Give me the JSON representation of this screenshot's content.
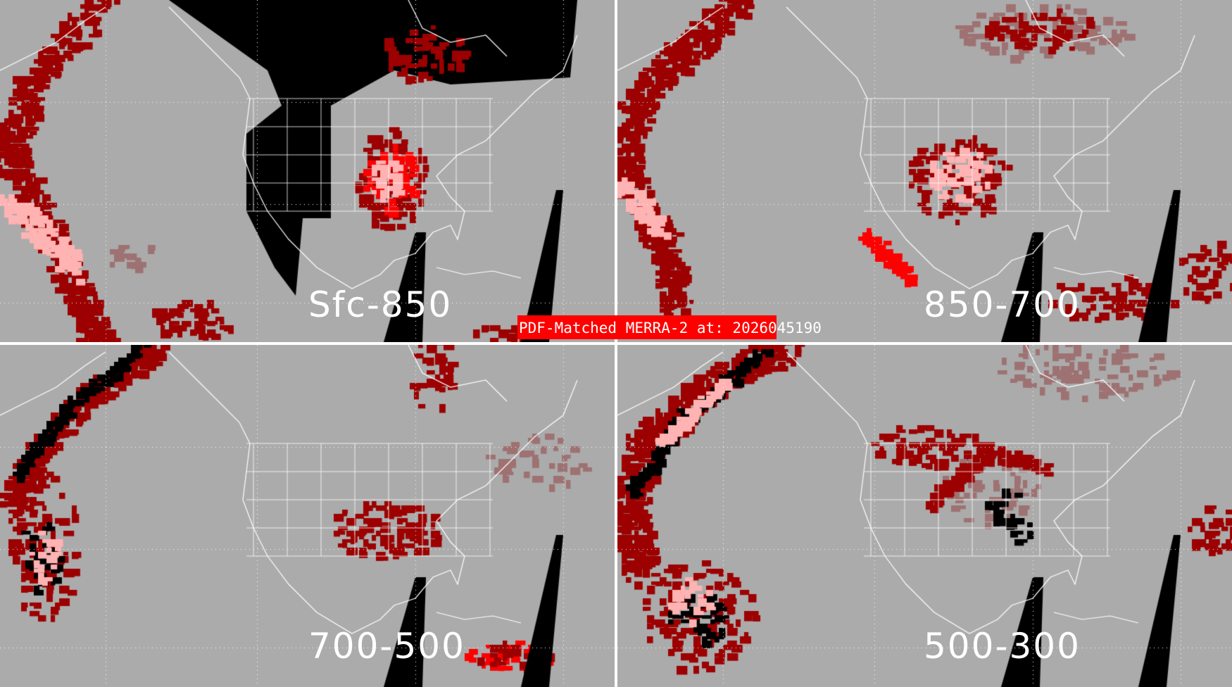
{
  "title": "PDF-Matched MERRA-2 at: 2026045190",
  "panels": [
    {
      "id": "p0",
      "label": "Sfc-850"
    },
    {
      "id": "p1",
      "label": "850-700"
    },
    {
      "id": "p2",
      "label": "700-500"
    },
    {
      "id": "p3",
      "label": "500-300"
    }
  ],
  "colors": {
    "background": "#ababab",
    "dark_red": "#9c0000",
    "red": "#ff0000",
    "pink": "#ffb3b3",
    "muted_red": "#9e7272",
    "black": "#000000",
    "coastline": "#ffffff",
    "title_bar": "#ff0000"
  }
}
